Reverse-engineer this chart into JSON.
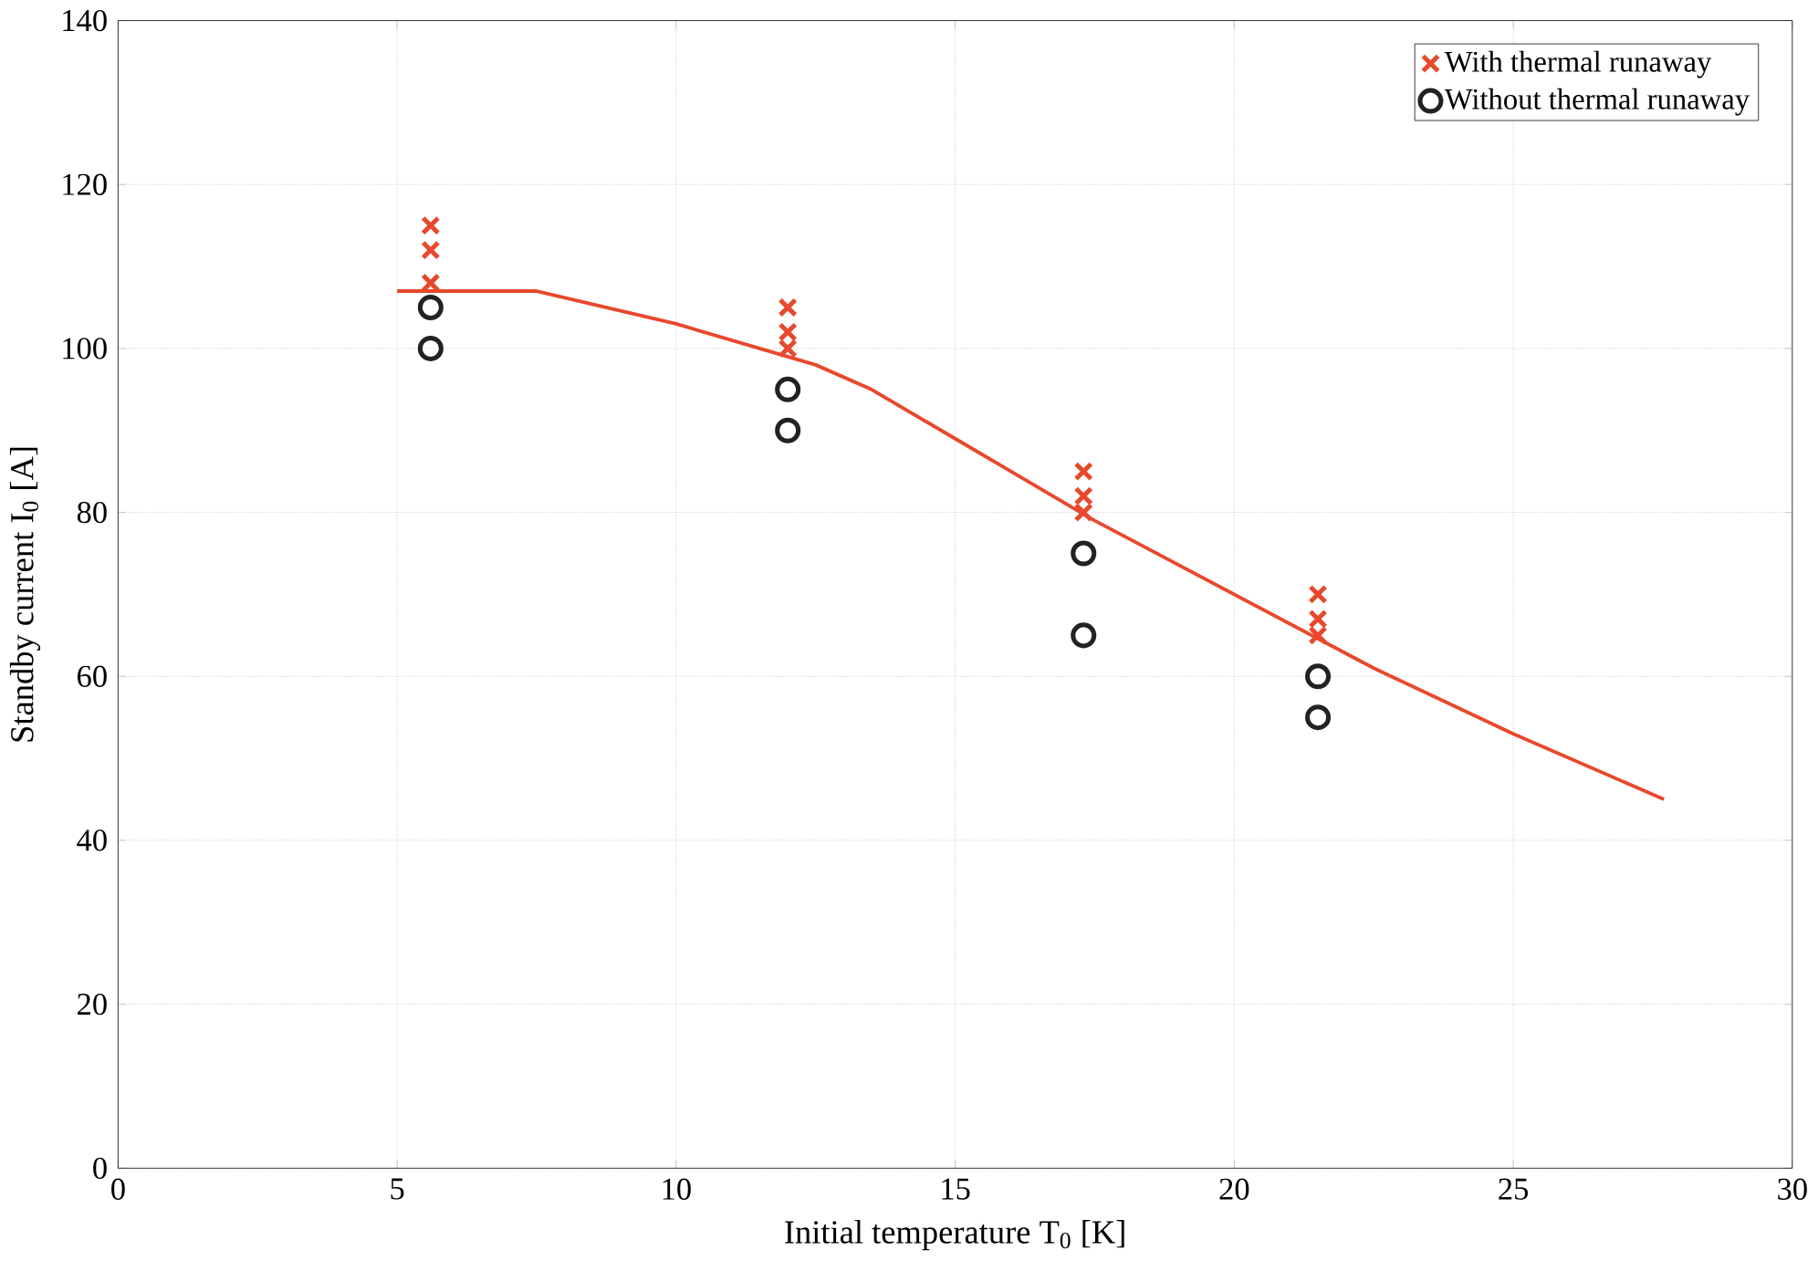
{
  "chart_data": {
    "type": "scatter",
    "xlabel": "Initial temperature T$_{0}$ [K]",
    "ylabel": "Standby current I$_{0}$ [A]",
    "xlim": [
      0,
      30
    ],
    "xticks": [
      0,
      5,
      10,
      15,
      20,
      25,
      30
    ],
    "ylim": [
      0,
      140
    ],
    "yticks": [
      0,
      20,
      40,
      60,
      80,
      100,
      120,
      140
    ],
    "grid": true,
    "legend": "top right",
    "series": [
      {
        "name": "With thermal runaway",
        "color": "#e8482c",
        "marker": "cross",
        "x": [
          5.6,
          5.6,
          5.6,
          12,
          12,
          12,
          17.3,
          17.3,
          17.3,
          21.5,
          21.5,
          21.5
        ],
        "values": [
          115,
          112,
          108,
          105,
          102,
          100,
          85,
          82,
          80,
          70,
          67,
          65
        ]
      },
      {
        "name": "Without thermal runaway",
        "color": "#222222",
        "marker": "circle",
        "x": [
          5.6,
          5.6,
          12,
          12,
          17.3,
          17.3,
          21.5,
          21.5
        ],
        "values": [
          105,
          100,
          95,
          90,
          75,
          65,
          60,
          55
        ]
      },
      {
        "type": "line",
        "color": "#e8482c",
        "marker": "none",
        "line_style": "solid",
        "x": [
          5,
          7.5,
          10,
          12.5,
          13.5,
          15,
          17.5,
          20,
          22.5,
          25,
          27.7
        ],
        "values": [
          107,
          107,
          103,
          98,
          95,
          89,
          79,
          70,
          61,
          53,
          45
        ]
      }
    ]
  }
}
